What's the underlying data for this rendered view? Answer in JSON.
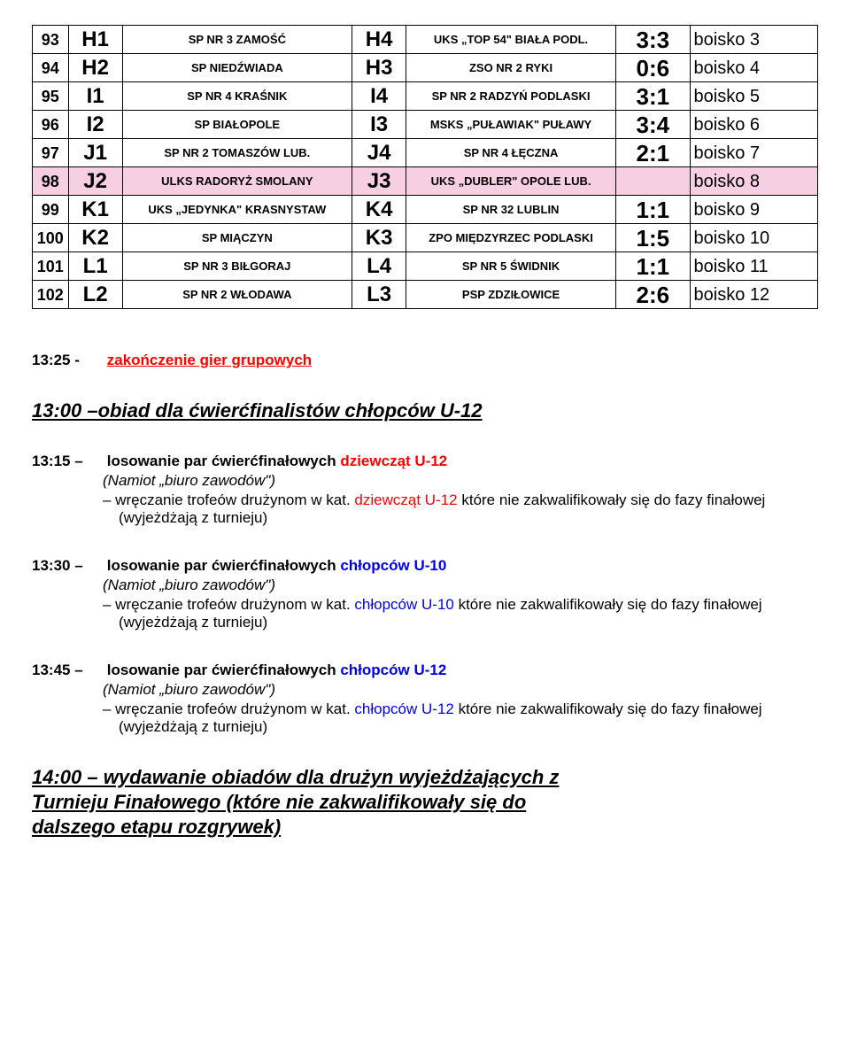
{
  "table": {
    "rows": [
      {
        "num": "93",
        "c1": "H1",
        "t1": "SP NR 3 ZAMOŚĆ",
        "c2": "H4",
        "t2": "UKS „TOP 54\" BIAŁA PODL.",
        "score": "3:3",
        "field": "boisko 3",
        "bg": "#ffffff"
      },
      {
        "num": "94",
        "c1": "H2",
        "t1": "SP NIEDŹWIADA",
        "c2": "H3",
        "t2": "ZSO NR 2 RYKI",
        "score": "0:6",
        "field": "boisko 4",
        "bg": "#ffffff"
      },
      {
        "num": "95",
        "c1": "I1",
        "t1": "SP NR 4 KRAŚNIK",
        "c2": "I4",
        "t2": "SP NR 2 RADZYŃ PODLASKI",
        "score": "3:1",
        "field": "boisko 5",
        "bg": "#ffffff"
      },
      {
        "num": "96",
        "c1": "I2",
        "t1": "SP BIAŁOPOLE",
        "c2": "I3",
        "t2": "MSKS „PUŁAWIAK\" PUŁAWY",
        "score": "3:4",
        "field": "boisko 6",
        "bg": "#ffffff"
      },
      {
        "num": "97",
        "c1": "J1",
        "t1": "SP NR 2 TOMASZÓW LUB.",
        "c2": "J4",
        "t2": "SP NR 4 ŁĘCZNA",
        "score": "2:1",
        "field": "boisko 7",
        "bg": "#ffffff"
      },
      {
        "num": "98",
        "c1": "J2",
        "t1": "ULKS RADORYŻ SMOLANY",
        "c2": "J3",
        "t2": "UKS „DUBLER\" OPOLE LUB.",
        "score": "",
        "field": "boisko 8",
        "bg": "#f7cfe2"
      },
      {
        "num": "99",
        "c1": "K1",
        "t1": "UKS „JEDYNKA\" KRASNYSTAW",
        "c2": "K4",
        "t2": "SP NR 32 LUBLIN",
        "score": "1:1",
        "field": "boisko 9",
        "bg": "#ffffff"
      },
      {
        "num": "100",
        "c1": "K2",
        "t1": "SP MIĄCZYN",
        "c2": "K3",
        "t2": "ZPO MIĘDZYRZEC PODLASKI",
        "score": "1:5",
        "field": "boisko 10",
        "bg": "#ffffff"
      },
      {
        "num": "101",
        "c1": "L1",
        "t1": "SP NR 3 BIŁGORAJ",
        "c2": "L4",
        "t2": "SP NR 5 ŚWIDNIK",
        "score": "1:1",
        "field": "boisko 11",
        "bg": "#ffffff"
      },
      {
        "num": "102",
        "c1": "L2",
        "t1": "SP NR 2 WŁODAWA",
        "c2": "L3",
        "t2": "PSP ZDZIŁOWICE",
        "score": "2:6",
        "field": "boisko 12",
        "bg": "#ffffff"
      }
    ]
  },
  "sec1": {
    "time": "13:25 -",
    "text": "zakończenie gier grupowych"
  },
  "sec2": {
    "text": "13:00 –obiad dla ćwierćfinalistów chłopców U-12"
  },
  "sec3": {
    "time": "13:15 –",
    "l1a": "losowanie par ćwierćfinałowych ",
    "l1b": "dziewcząt  U-12",
    "paren": "(Namiot „biuro zawodów\")",
    "d1a": "–    wręczanie trofeów drużynom w kat. ",
    "d1b": "dziewcząt U-12",
    "d1c": " które nie zakwalifikowały się do fazy finałowej (wyjeżdżają z turnieju)"
  },
  "sec4": {
    "time": "13:30 –",
    "l1a": "losowanie par ćwierćfinałowych ",
    "l1b": "chłopców  U-10",
    "paren": "(Namiot „biuro zawodów\")",
    "d1a": "–    wręczanie trofeów drużynom w kat. ",
    "d1b": "chłopców  U-10",
    "d1c": " które nie zakwalifikowały się do fazy finałowej (wyjeżdżają z turnieju)"
  },
  "sec5": {
    "time": "13:45 –",
    "l1a": "losowanie par ćwierćfinałowych ",
    "l1b": "chłopców  U-12",
    "paren": "(Namiot „biuro zawodów\")",
    "d1a": "–    wręczanie trofeów drużynom w kat. ",
    "d1b": "chłopców  U-12",
    "d1c": " które nie zakwalifikowały się do fazy finałowej (wyjeżdżają z turnieju)"
  },
  "sec6": {
    "l1": "14:00 – wydawanie obiadów dla drużyn wyjeżdżających z",
    "l2": "Turnieju Finałowego (które nie zakwalifikowały się do",
    "l3": "dalszego etapu rozgrywek)"
  }
}
